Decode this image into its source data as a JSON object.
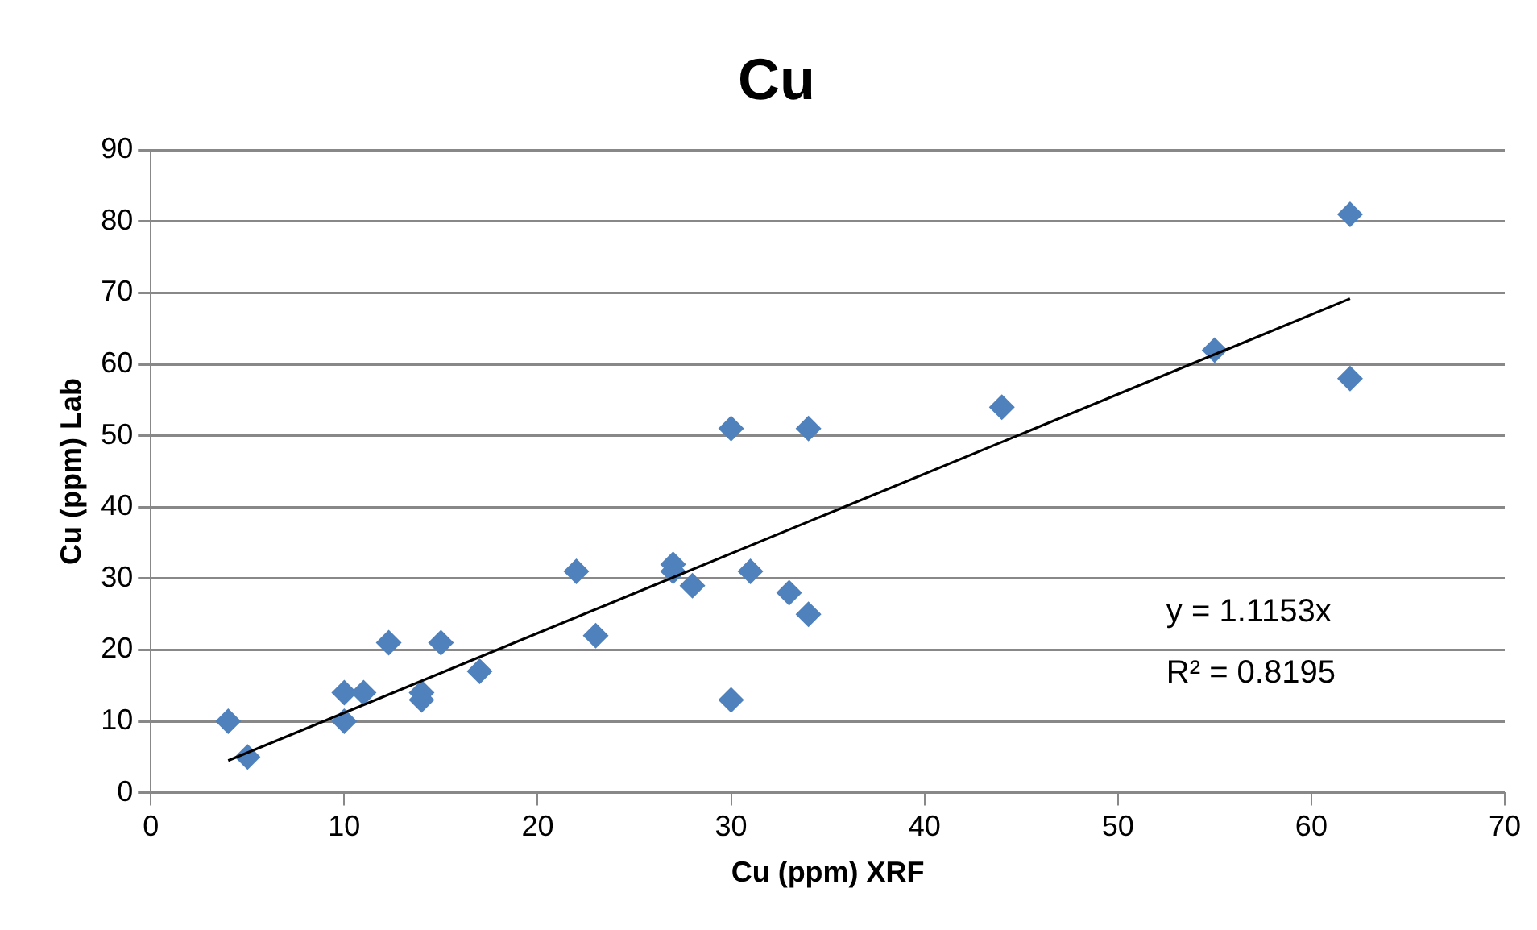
{
  "chart_data": {
    "type": "scatter",
    "title": "Cu",
    "xlabel": "Cu (ppm) XRF",
    "ylabel": "Cu (ppm) Lab",
    "xlim": [
      0,
      70
    ],
    "xticks": [
      0,
      10,
      20,
      30,
      40,
      50,
      60,
      70
    ],
    "ylim": [
      0,
      90
    ],
    "yticks": [
      0,
      10,
      20,
      30,
      40,
      50,
      60,
      70,
      80,
      90
    ],
    "grid": "y",
    "legend": false,
    "marker": "diamond",
    "annotations": [
      "y = 1.1153x",
      "R² = 0.8195"
    ],
    "series": [
      {
        "type": "scatter",
        "color": "#4f81bd",
        "x": [
          4,
          5,
          10,
          10,
          11,
          12.3,
          14,
          14,
          15,
          17,
          22,
          23,
          27,
          27,
          28,
          30,
          30,
          31,
          33,
          34,
          34,
          44,
          55,
          62,
          62
        ],
        "values": [
          10,
          5,
          14,
          10,
          14,
          21,
          13,
          14,
          21,
          17,
          31,
          22,
          32,
          31,
          29,
          51,
          13,
          31,
          28,
          51,
          25,
          54,
          62,
          81,
          58
        ]
      },
      {
        "type": "line",
        "color": "#000000",
        "marker": "none",
        "line_style": "solid",
        "x": [
          4,
          62
        ],
        "values": [
          4.5,
          69.2
        ]
      }
    ]
  }
}
